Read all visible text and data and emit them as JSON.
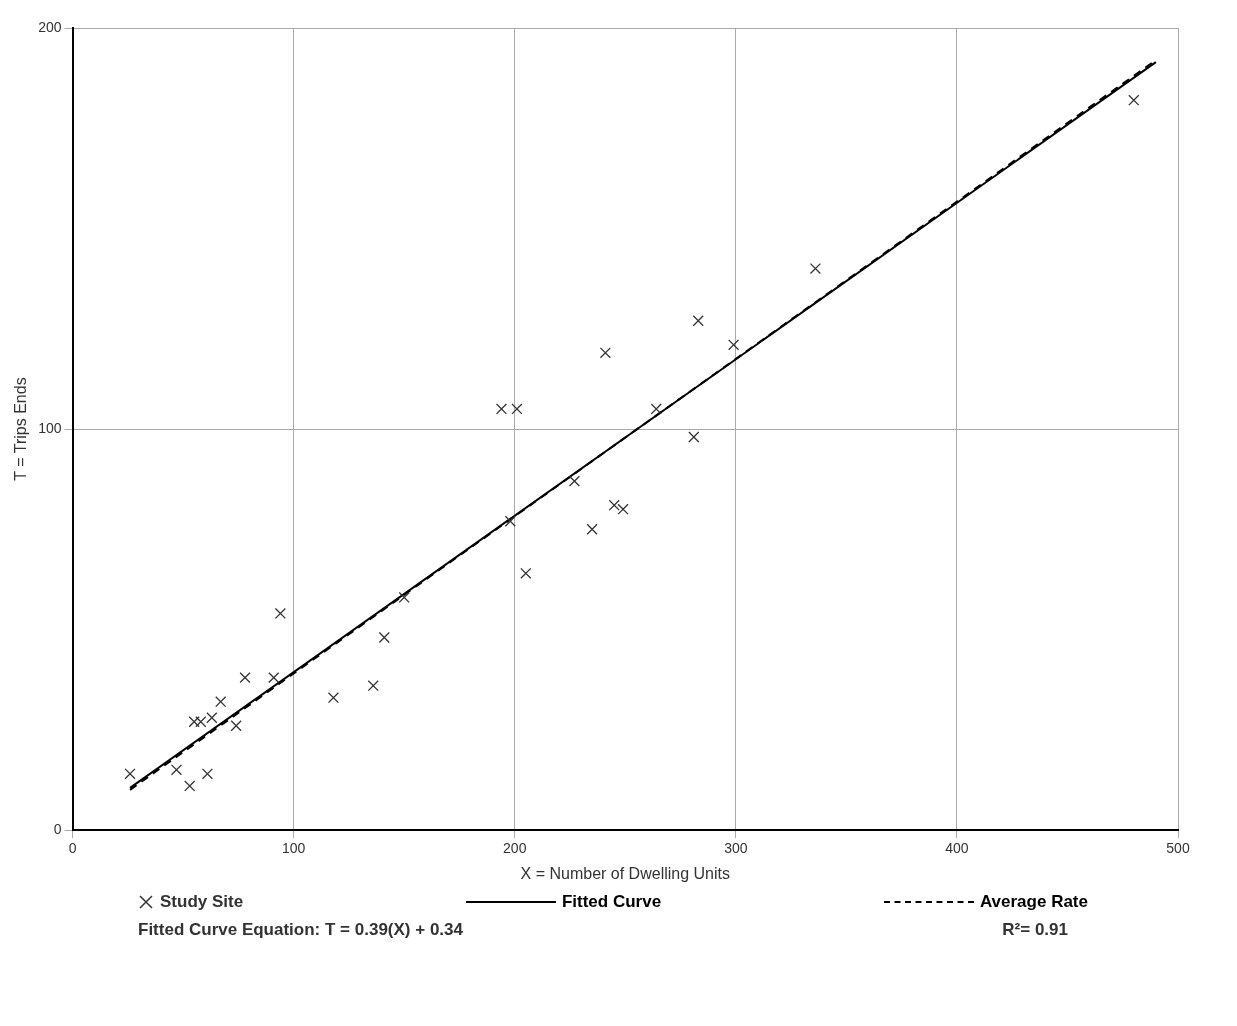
{
  "chart_data": {
    "type": "scatter",
    "xlabel": "X = Number of Dwelling Units",
    "ylabel": "T = Trips Ends",
    "xlim": [
      0,
      500
    ],
    "xticks": [
      0,
      100,
      200,
      300,
      400,
      500
    ],
    "ylim": [
      0,
      200
    ],
    "yticks": [
      0,
      100,
      200
    ],
    "grid": true,
    "legend": "bottom",
    "series": [
      {
        "name": "Study Site",
        "marker": "cross",
        "color": "#333333",
        "x": [
          26,
          47,
          53,
          61,
          55,
          58,
          63,
          67,
          74,
          78,
          91,
          94,
          118,
          136,
          141,
          150,
          194,
          201,
          198,
          205,
          227,
          235,
          241,
          245,
          249,
          264,
          281,
          283,
          299,
          336,
          480
        ],
        "values": [
          14,
          15,
          11,
          14,
          27,
          27,
          28,
          32,
          26,
          38,
          38,
          54,
          33,
          36,
          48,
          58,
          105,
          105,
          77,
          64,
          87,
          75,
          119,
          81,
          80,
          105,
          98,
          127,
          121,
          140,
          182
        ]
      },
      {
        "name": "Fitted Curve",
        "type": "line",
        "color": "#000000",
        "line_style": "solid",
        "x": [
          26,
          490
        ],
        "values": [
          10.5,
          191.5
        ]
      },
      {
        "name": "Average Rate",
        "type": "line",
        "color": "#000000",
        "line_style": "dashed",
        "x": [
          26,
          490
        ],
        "values": [
          10,
          192
        ]
      }
    ],
    "annotations": [
      "Fitted Curve Equation: T = 0.39(X) + 0.34",
      "R²= 0.91"
    ]
  }
}
